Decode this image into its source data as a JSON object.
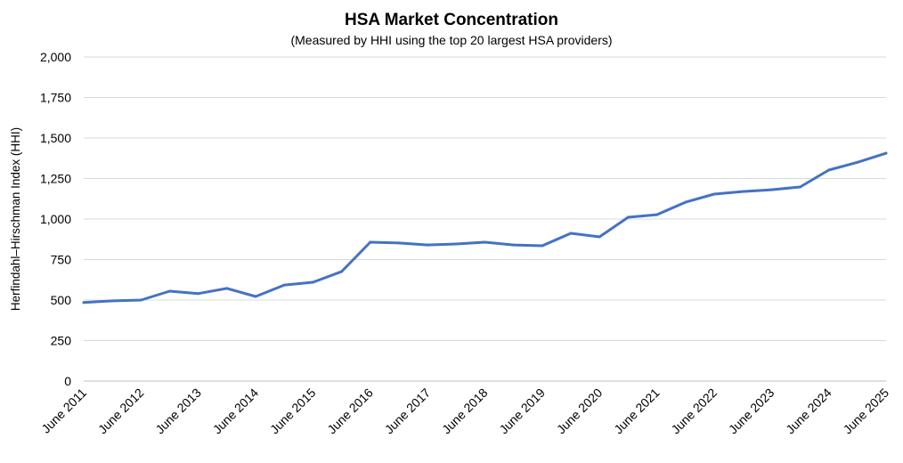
{
  "chart_data": {
    "type": "line",
    "title": "HSA Market Concentration",
    "subtitle": "(Measured by HHI using the top 20 largest HSA providers)",
    "xlabel": "",
    "ylabel": "Herfindahl–Hirschman Index (HHI)",
    "ylim": [
      0,
      2000
    ],
    "yticks": [
      "0",
      "250",
      "500",
      "750",
      "1,000",
      "1,250",
      "1,500",
      "1,750",
      "2,000"
    ],
    "ytick_values": [
      0,
      250,
      500,
      750,
      1000,
      1250,
      1500,
      1750,
      2000
    ],
    "xtick_labels": [
      "June 2011",
      "June 2012",
      "June 2013",
      "June 2014",
      "June 2015",
      "June 2016",
      "June 2017",
      "June 2018",
      "June 2019",
      "June 2020",
      "June 2021",
      "June 2022",
      "June 2023",
      "June 2024",
      "June 2025"
    ],
    "x": [
      "Jun 2011",
      "Dec 2011",
      "Jun 2012",
      "Dec 2012",
      "Jun 2013",
      "Dec 2013",
      "Jun 2014",
      "Dec 2014",
      "Jun 2015",
      "Dec 2015",
      "Jun 2016",
      "Dec 2016",
      "Jun 2017",
      "Dec 2017",
      "Jun 2018",
      "Dec 2018",
      "Jun 2019",
      "Dec 2019",
      "Jun 2020",
      "Dec 2020",
      "Jun 2021",
      "Dec 2021",
      "Jun 2022",
      "Dec 2022",
      "Jun 2023",
      "Dec 2023",
      "Jun 2024",
      "Dec 2024",
      "Jun 2025"
    ],
    "series": [
      {
        "values": [
          485,
          495,
          500,
          555,
          540,
          572,
          522,
          593,
          610,
          676,
          857,
          852,
          840,
          846,
          857,
          840,
          835,
          912,
          890,
          1011,
          1027,
          1104,
          1154,
          1170,
          1181,
          1198,
          1302,
          1350,
          1406
        ]
      }
    ],
    "grid": true,
    "legend": "none",
    "colors": {
      "line": "#4472C4",
      "grid": "#D9D9D9"
    }
  }
}
